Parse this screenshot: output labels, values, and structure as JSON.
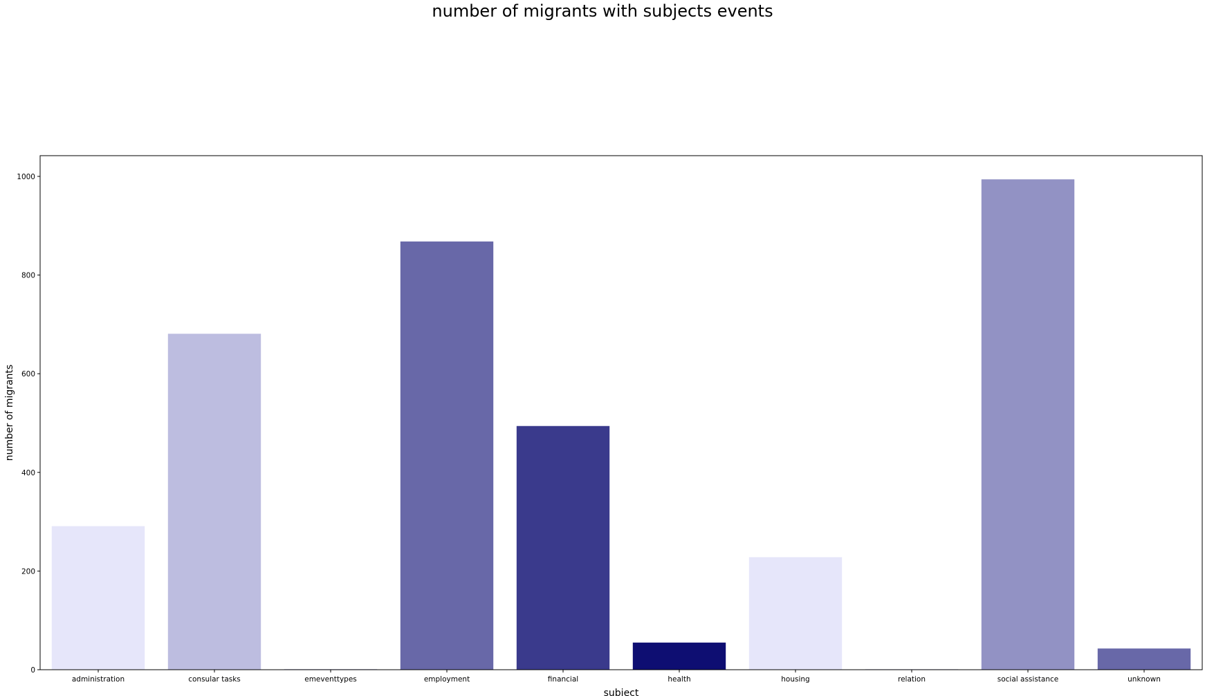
{
  "chart_data": {
    "type": "bar",
    "title": "number of migrants with subjects events",
    "xlabel": "subject",
    "ylabel": "number of migrants",
    "categories": [
      "administration",
      "consular tasks",
      "emeventtypes",
      "employment",
      "financial",
      "health",
      "housing",
      "relation",
      "social assistance",
      "unknown"
    ],
    "values": [
      291,
      681,
      1,
      868,
      494,
      55,
      228,
      1,
      994,
      43
    ],
    "colors": [
      "#e6e6fa",
      "#bdbde0",
      "#8e8ec4",
      "#6868a8",
      "#3a3a8c",
      "#0e0e72",
      "#e6e6fa",
      "#bdbde0",
      "#9292c4",
      "#6868a8"
    ],
    "yticks": [
      0,
      200,
      400,
      600,
      800,
      1000
    ],
    "ylim": [
      0,
      1042
    ],
    "grid": false,
    "legend": "none"
  }
}
